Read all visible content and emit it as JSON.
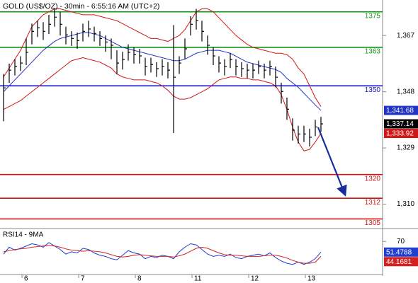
{
  "chart_data": [
    {
      "type": "ohlc",
      "title": "GOLD (US$/OZ) - 30min - 6:55:16 AM (UTC+2)",
      "high": [
        1354,
        1357.5,
        1359,
        1360,
        1366,
        1371,
        1372,
        1371.5,
        1374,
        1376,
        1375,
        1370,
        1368.5,
        1368,
        1371,
        1372,
        1370,
        1368.5,
        1367,
        1366,
        1362,
        1361.5,
        1364,
        1363,
        1362.5,
        1359.5,
        1359.5,
        1358,
        1359,
        1358,
        1370.5,
        1360,
        1366,
        1373.5,
        1376,
        1372,
        1367,
        1363,
        1360,
        1359,
        1361,
        1359,
        1358,
        1357.5,
        1357.5,
        1358.5,
        1357.5,
        1358.5,
        1356.5,
        1351,
        1346,
        1339,
        1336.5,
        1336.5,
        1335.5,
        1338.5,
        1339.5
      ],
      "low": [
        1338,
        1351,
        1353.5,
        1355,
        1357,
        1364,
        1366.5,
        1365.5,
        1367.5,
        1370,
        1367,
        1364,
        1363.5,
        1362.5,
        1365,
        1366.5,
        1365,
        1363.5,
        1361.5,
        1359,
        1354,
        1355.5,
        1358.5,
        1357.5,
        1357.5,
        1353.5,
        1354.5,
        1353,
        1353.5,
        1352.5,
        1334,
        1354,
        1359,
        1367,
        1369,
        1365,
        1360.5,
        1357,
        1354.5,
        1353.5,
        1356,
        1353.5,
        1353,
        1352.5,
        1352.5,
        1354,
        1352.5,
        1353.5,
        1349.5,
        1344,
        1338.5,
        1331.5,
        1330.5,
        1331,
        1329.5,
        1333,
        1334.5
      ],
      "close": [
        1349.3,
        1355.3,
        1356.5,
        1357.7,
        1361.3,
        1368.4,
        1369.6,
        1368.4,
        1370.8,
        1373.2,
        1370.8,
        1367.2,
        1366,
        1365.3,
        1368.4,
        1369.2,
        1367.7,
        1366,
        1364.8,
        1363.7,
        1357.7,
        1358.9,
        1361.3,
        1360.5,
        1360.1,
        1356.5,
        1357.2,
        1355.8,
        1356.5,
        1355.3,
        1352.9,
        1357.7,
        1362.5,
        1370.8,
        1372,
        1368.4,
        1363.7,
        1360.1,
        1357.7,
        1356.5,
        1358.9,
        1356.5,
        1355.8,
        1355.3,
        1355.3,
        1356.5,
        1355.3,
        1356.5,
        1352.9,
        1348.1,
        1342.1,
        1335,
        1333.7,
        1333.7,
        1332.6,
        1336.1,
        1337.14
      ],
      "last_label": "1,337.14",
      "color": "#000000",
      "series": [
        {
          "color": "#d01818",
          "values": [
            1353,
            1356,
            1359,
            1362,
            1366,
            1370,
            1372,
            1374,
            1375,
            1376,
            1376,
            1375.5,
            1375,
            1374.5,
            1374,
            1374,
            1374,
            1373.5,
            1373,
            1372.5,
            1372,
            1371,
            1370,
            1369,
            1368,
            1367,
            1366,
            1366,
            1365.5,
            1365,
            1366,
            1367,
            1369,
            1372,
            1375,
            1376,
            1376,
            1375,
            1373,
            1371,
            1369,
            1367,
            1365.5,
            1364,
            1363,
            1362.5,
            1362,
            1361.5,
            1361,
            1361,
            1360.5,
            1359,
            1356,
            1354,
            1350,
            1346,
            1343
          ]
        },
        {
          "color": "#2233c8",
          "last_label": "1,341.68",
          "values": [
            1348,
            1350,
            1352,
            1354,
            1356,
            1358,
            1360,
            1362,
            1363.5,
            1365,
            1366,
            1366.5,
            1367,
            1367.5,
            1368,
            1368,
            1367.5,
            1367,
            1366,
            1365,
            1364,
            1363,
            1362.5,
            1362,
            1361.5,
            1361,
            1360.5,
            1360,
            1359.5,
            1359,
            1358.5,
            1358.5,
            1359,
            1360,
            1361,
            1361.5,
            1362,
            1362,
            1362,
            1361.5,
            1361,
            1360,
            1359,
            1358,
            1357.5,
            1357,
            1356.5,
            1356,
            1355.5,
            1354.5,
            1352.5,
            1351,
            1349.5,
            1347.5,
            1345.5,
            1343.5,
            1341.68
          ]
        },
        {
          "color": "#d01818",
          "last_label": "1,333.92",
          "values": [
            1342,
            1343,
            1344,
            1345,
            1346.5,
            1348,
            1349.5,
            1351,
            1352.5,
            1354,
            1355.5,
            1357,
            1358.5,
            1359,
            1359.5,
            1359,
            1358.5,
            1358,
            1357,
            1356,
            1354,
            1353,
            1352.5,
            1352,
            1352,
            1352,
            1351.5,
            1351,
            1350,
            1348.5,
            1346.5,
            1345.5,
            1345.5,
            1346,
            1347,
            1348,
            1349,
            1350.5,
            1352,
            1352.5,
            1353,
            1353,
            1352.5,
            1352.5,
            1352,
            1352,
            1351.5,
            1351,
            1350,
            1347,
            1342,
            1336,
            1331,
            1328,
            1328.5,
            1331,
            1333.92
          ]
        }
      ],
      "levels": [
        {
          "value": 1375,
          "color": "#16931a"
        },
        {
          "value": 1363,
          "color": "#16931a"
        },
        {
          "value": 1350,
          "color": "#1414c8"
        },
        {
          "value": 1320,
          "color": "#d01414"
        },
        {
          "value": 1312,
          "color": "#d01414"
        },
        {
          "value": 1305,
          "color": "#d01414"
        }
      ],
      "ylim": [
        1302,
        1379
      ],
      "yticks": [
        {
          "value": 1310,
          "label": "1,310"
        },
        {
          "value": 1329,
          "label": "1,329"
        },
        {
          "value": 1348,
          "label": "1,348"
        },
        {
          "value": 1367,
          "label": "1,367"
        }
      ]
    },
    {
      "type": "line",
      "title": "RSI14 - 9MA",
      "categories": [
        null,
        null,
        null,
        null,
        "6",
        null,
        null,
        null,
        null,
        null,
        null,
        null,
        null,
        null,
        "7",
        null,
        null,
        null,
        null,
        null,
        null,
        null,
        null,
        null,
        "8",
        null,
        null,
        null,
        null,
        null,
        null,
        null,
        null,
        null,
        "11",
        null,
        null,
        null,
        null,
        null,
        null,
        null,
        null,
        null,
        "12",
        null,
        null,
        null,
        null,
        null,
        null,
        null,
        null,
        null,
        "13",
        null,
        null
      ],
      "series": [
        {
          "color": "#1f3fd0",
          "last_label": "51.4788",
          "values": [
            48,
            60,
            55,
            58,
            62,
            66,
            64,
            60,
            68,
            62,
            56,
            48,
            52,
            50,
            58,
            56,
            50,
            46,
            44,
            40,
            38,
            46,
            54,
            50,
            48,
            40,
            44,
            42,
            46,
            44,
            40,
            52,
            60,
            66,
            64,
            56,
            48,
            44,
            46,
            44,
            48,
            42,
            40,
            44,
            46,
            48,
            45,
            50,
            42,
            36,
            32,
            30,
            34,
            30,
            34,
            40,
            51.4788
          ]
        },
        {
          "color": "#d42020",
          "last_label": "44.1681",
          "values": [
            52,
            54,
            56,
            57,
            58,
            60,
            61,
            62,
            63,
            62,
            60,
            57,
            55,
            54,
            53,
            54,
            53,
            52,
            50,
            47,
            44,
            43,
            44,
            46,
            47,
            46,
            45,
            44,
            44,
            44,
            43,
            45,
            48,
            53,
            58,
            60,
            58,
            54,
            50,
            47,
            46,
            46,
            45,
            44,
            44,
            44,
            45,
            46,
            46,
            44,
            41,
            37,
            34,
            32,
            32,
            34,
            44.1681
          ]
        }
      ],
      "ylim": [
        10,
        90
      ],
      "yticks": [
        70
      ]
    }
  ]
}
